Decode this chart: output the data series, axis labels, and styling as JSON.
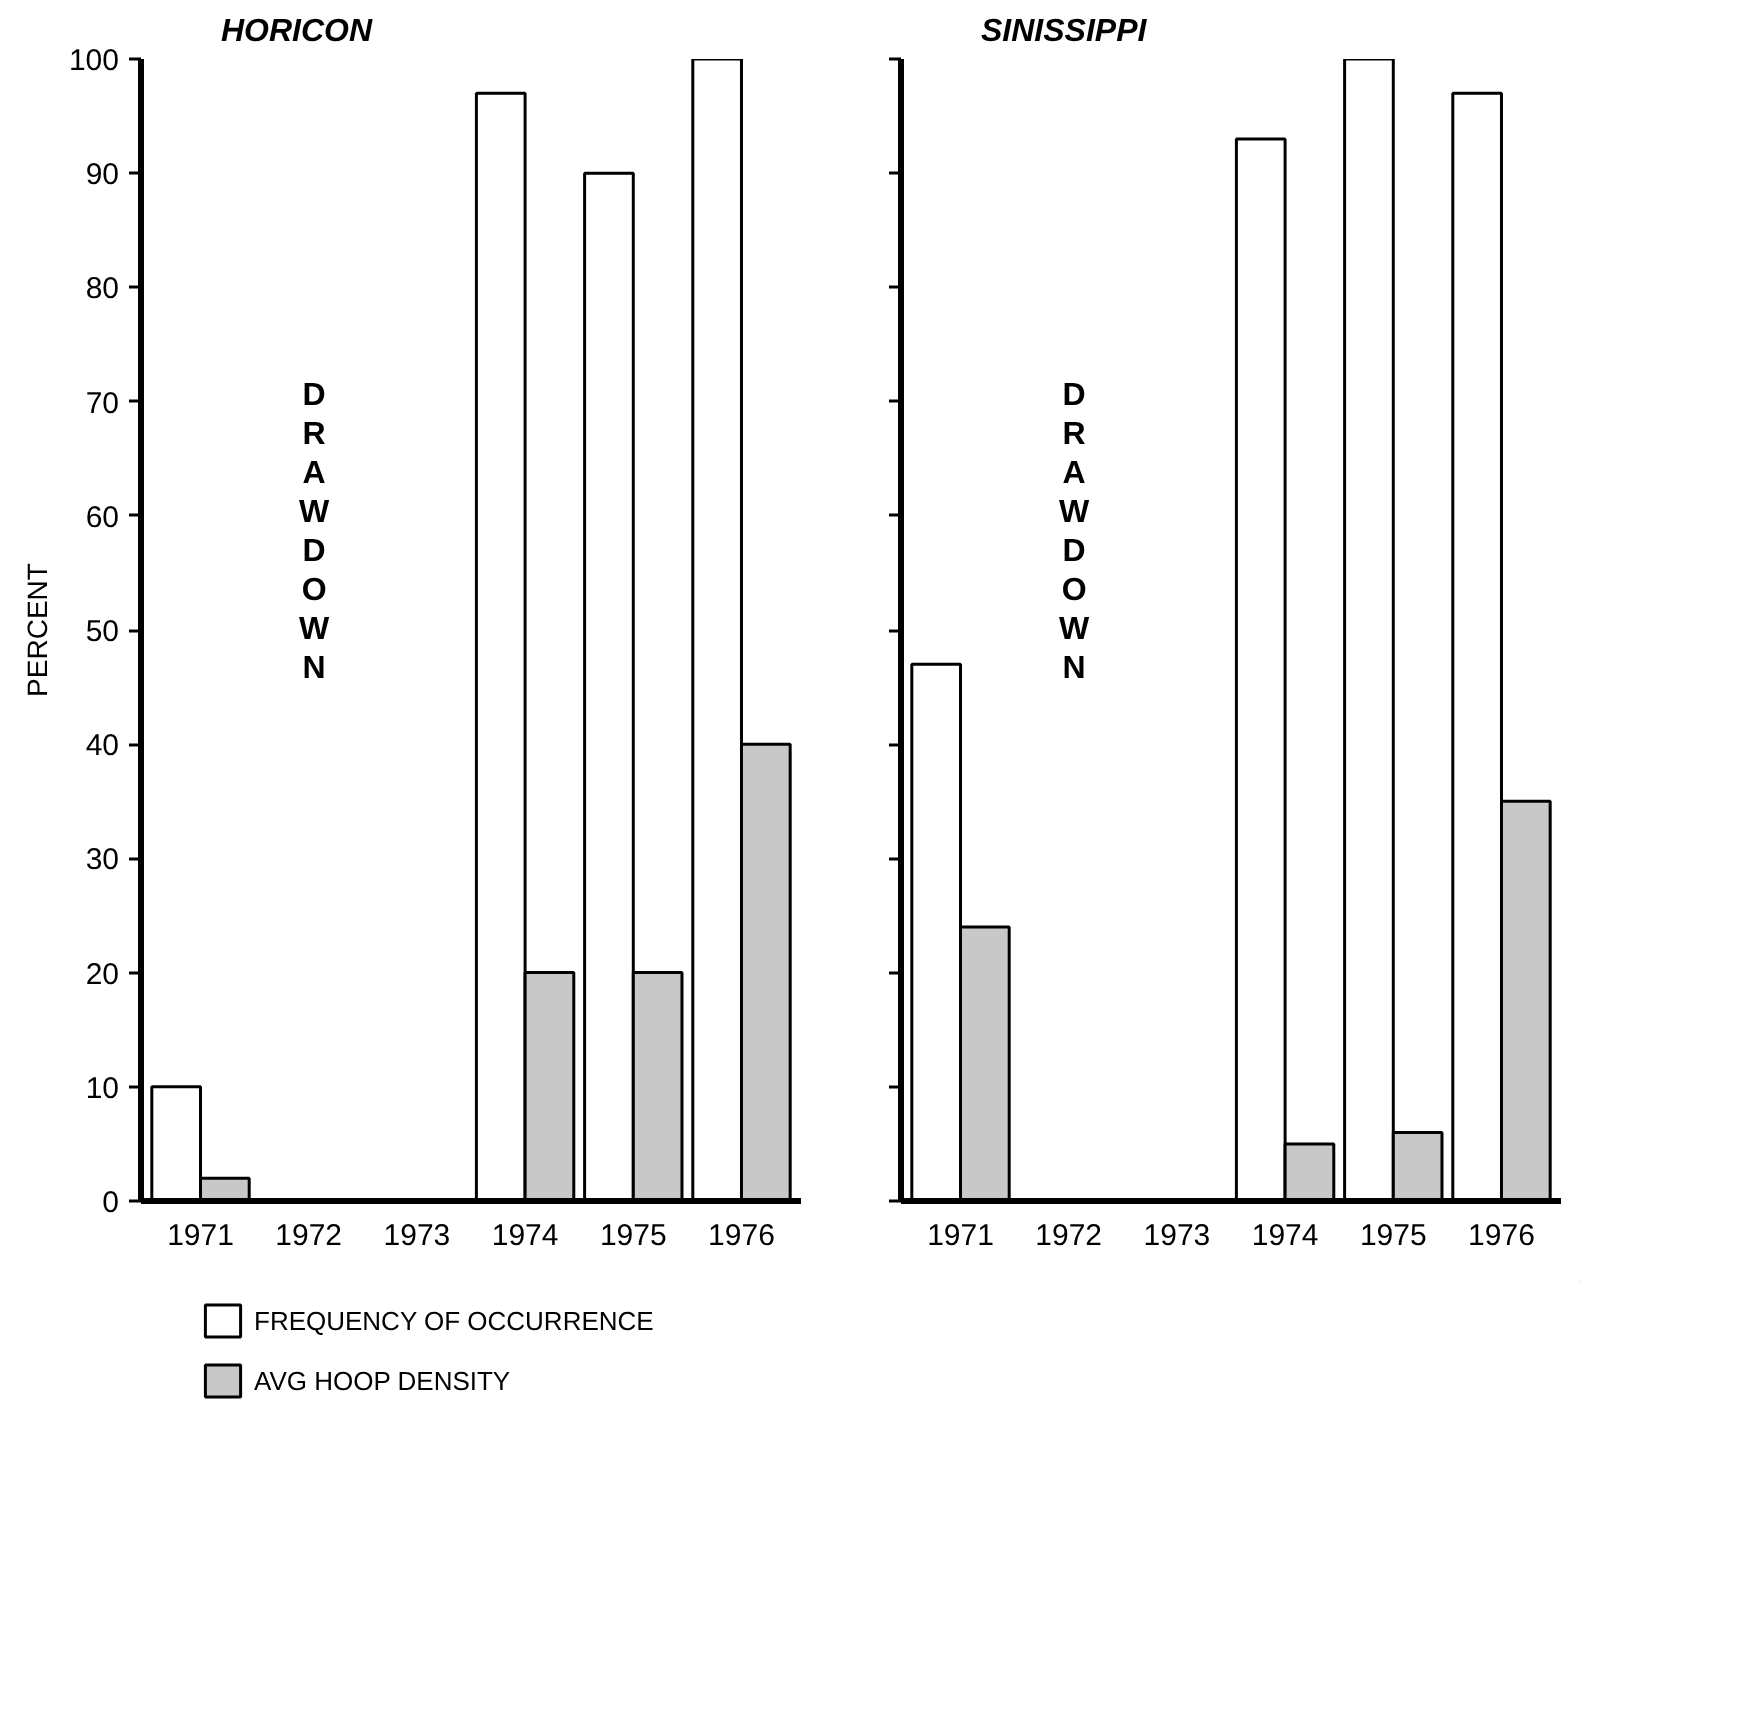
{
  "chart_data": [
    {
      "type": "bar",
      "title": "HORICON",
      "ylabel": "PERCENT",
      "categories": [
        "1971",
        "1972",
        "1973",
        "1974",
        "1975",
        "1976"
      ],
      "ylim": [
        0,
        100
      ],
      "yticks": [
        0,
        10,
        20,
        30,
        40,
        50,
        60,
        70,
        80,
        90,
        100
      ],
      "grid": false,
      "legend": "bottom",
      "annotations": [
        "DRAWDOWN"
      ],
      "series": [
        {
          "name": "FREQUENCY OF OCCURRENCE",
          "color": "#ffffff",
          "values": [
            10,
            null,
            null,
            97,
            90,
            100
          ]
        },
        {
          "name": "AVG HOOP DENSITY",
          "color": "#c8c8c8",
          "values": [
            2,
            null,
            null,
            20,
            20,
            40
          ]
        }
      ]
    },
    {
      "type": "bar",
      "title": "SINISSIPPI",
      "categories": [
        "1971",
        "1972",
        "1973",
        "1974",
        "1975",
        "1976"
      ],
      "ylim": [
        0,
        100
      ],
      "yticks": [
        0,
        10,
        20,
        30,
        40,
        50,
        60,
        70,
        80,
        90,
        100
      ],
      "tick_labels": "x",
      "grid": false,
      "annotations": [
        "DRAWDOWN"
      ],
      "series": [
        {
          "color": "#ffffff",
          "values": [
            47,
            null,
            null,
            93,
            100,
            97
          ]
        },
        {
          "color": "#c8c8c8",
          "values": [
            24,
            null,
            null,
            5,
            6,
            35
          ]
        }
      ]
    }
  ]
}
